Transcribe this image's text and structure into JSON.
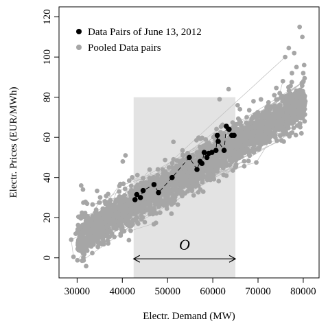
{
  "chart_data": {
    "type": "scatter",
    "xlabel": "Electr. Demand (MW)",
    "ylabel": "Electr. Prices (EUR/MWh)",
    "xlim": [
      26000,
      83500
    ],
    "ylim": [
      -10,
      125
    ],
    "x_ticks": [
      30000,
      40000,
      50000,
      60000,
      70000,
      80000
    ],
    "x_tick_labels": [
      "30000",
      "40000",
      "50000",
      "60000",
      "70000",
      "80000"
    ],
    "y_ticks": [
      0,
      20,
      40,
      60,
      80,
      100,
      120
    ],
    "y_tick_labels": [
      "0",
      "20",
      "40",
      "60",
      "80",
      "100",
      "120"
    ],
    "grid": false,
    "legend_position": "top-left",
    "shaded_region": {
      "x": [
        42500,
        65000
      ],
      "y": [
        -10,
        80
      ],
      "color": "#e3e3e3"
    },
    "annotation": {
      "label": "O",
      "arrow_x": [
        42500,
        65000
      ],
      "arrow_y": -0.5,
      "label_y": 4
    },
    "series": [
      {
        "name": "Data Pairs of June 13, 2012",
        "color": "#000000",
        "x": [
          42800,
          43200,
          44000,
          44600,
          47000,
          48000,
          51000,
          54800,
          56500,
          57200,
          57600,
          58100,
          58700,
          59100,
          59800,
          60700,
          61000,
          61200,
          62500,
          63000,
          63600,
          64200,
          64700
        ],
        "y": [
          29,
          31.5,
          30,
          33.5,
          36.5,
          32.5,
          40,
          50,
          44,
          48,
          47,
          52.5,
          50,
          52,
          52.5,
          53.5,
          61,
          58,
          53.5,
          65.5,
          64,
          61,
          61
        ]
      },
      {
        "name": "Pooled Data pairs",
        "color": "#a6a6a6",
        "slope": 0.00135,
        "x_center": 55000,
        "y_center": 43,
        "upper_tail": [
          [
            76000,
            100
          ],
          [
            76800,
            104.5
          ],
          [
            78000,
            102
          ],
          [
            78500,
            95
          ],
          [
            79200,
            115
          ],
          [
            79800,
            110
          ],
          [
            80000,
            92
          ],
          [
            80200,
            96
          ],
          [
            77500,
            92
          ],
          [
            75500,
            88
          ],
          [
            74800,
            82
          ],
          [
            73600,
            81
          ],
          [
            69000,
            78
          ],
          [
            61500,
            79
          ],
          [
            63500,
            84
          ],
          [
            65500,
            76
          ],
          [
            66000,
            74
          ],
          [
            67500,
            70
          ],
          [
            72000,
            74
          ],
          [
            79600,
            62
          ],
          [
            80300,
            68
          ]
        ],
        "lower_tail": [
          [
            28700,
            9
          ],
          [
            29200,
            0.5
          ],
          [
            29700,
            12
          ],
          [
            30300,
            16
          ],
          [
            30800,
            8
          ],
          [
            31200,
            13
          ],
          [
            30900,
            36
          ],
          [
            31300,
            34
          ],
          [
            32200,
            27
          ],
          [
            33100,
            18
          ],
          [
            34600,
            22
          ],
          [
            35600,
            15
          ],
          [
            36800,
            24
          ],
          [
            38000,
            19
          ],
          [
            40100,
            48
          ],
          [
            40700,
            51
          ],
          [
            39300,
            33
          ],
          [
            41600,
            24
          ],
          [
            42000,
            16
          ],
          [
            43500,
            17
          ],
          [
            44200,
            21
          ]
        ]
      }
    ]
  }
}
